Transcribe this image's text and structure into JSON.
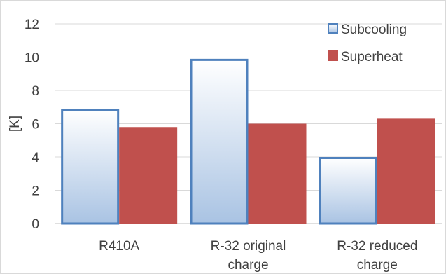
{
  "chart_data": {
    "type": "bar",
    "categories": [
      [
        "R410A"
      ],
      [
        "R-32 original",
        "charge"
      ],
      [
        "R-32 reduced",
        "charge"
      ]
    ],
    "series": [
      {
        "name": "Subcooling",
        "values": [
          6.9,
          9.9,
          4.0
        ],
        "color_top": "#ffffff",
        "color_bottom": "#a9c3e3",
        "stroke": "#4f81bd"
      },
      {
        "name": "Superheat",
        "values": [
          5.8,
          6.0,
          6.3
        ],
        "color": "#c0504d"
      }
    ],
    "xlabel": "",
    "ylabel": "[K]",
    "ylim": [
      0,
      12
    ],
    "yticks": [
      0,
      2,
      4,
      6,
      8,
      10,
      12
    ],
    "grid": true,
    "legend_position": "top-right"
  }
}
